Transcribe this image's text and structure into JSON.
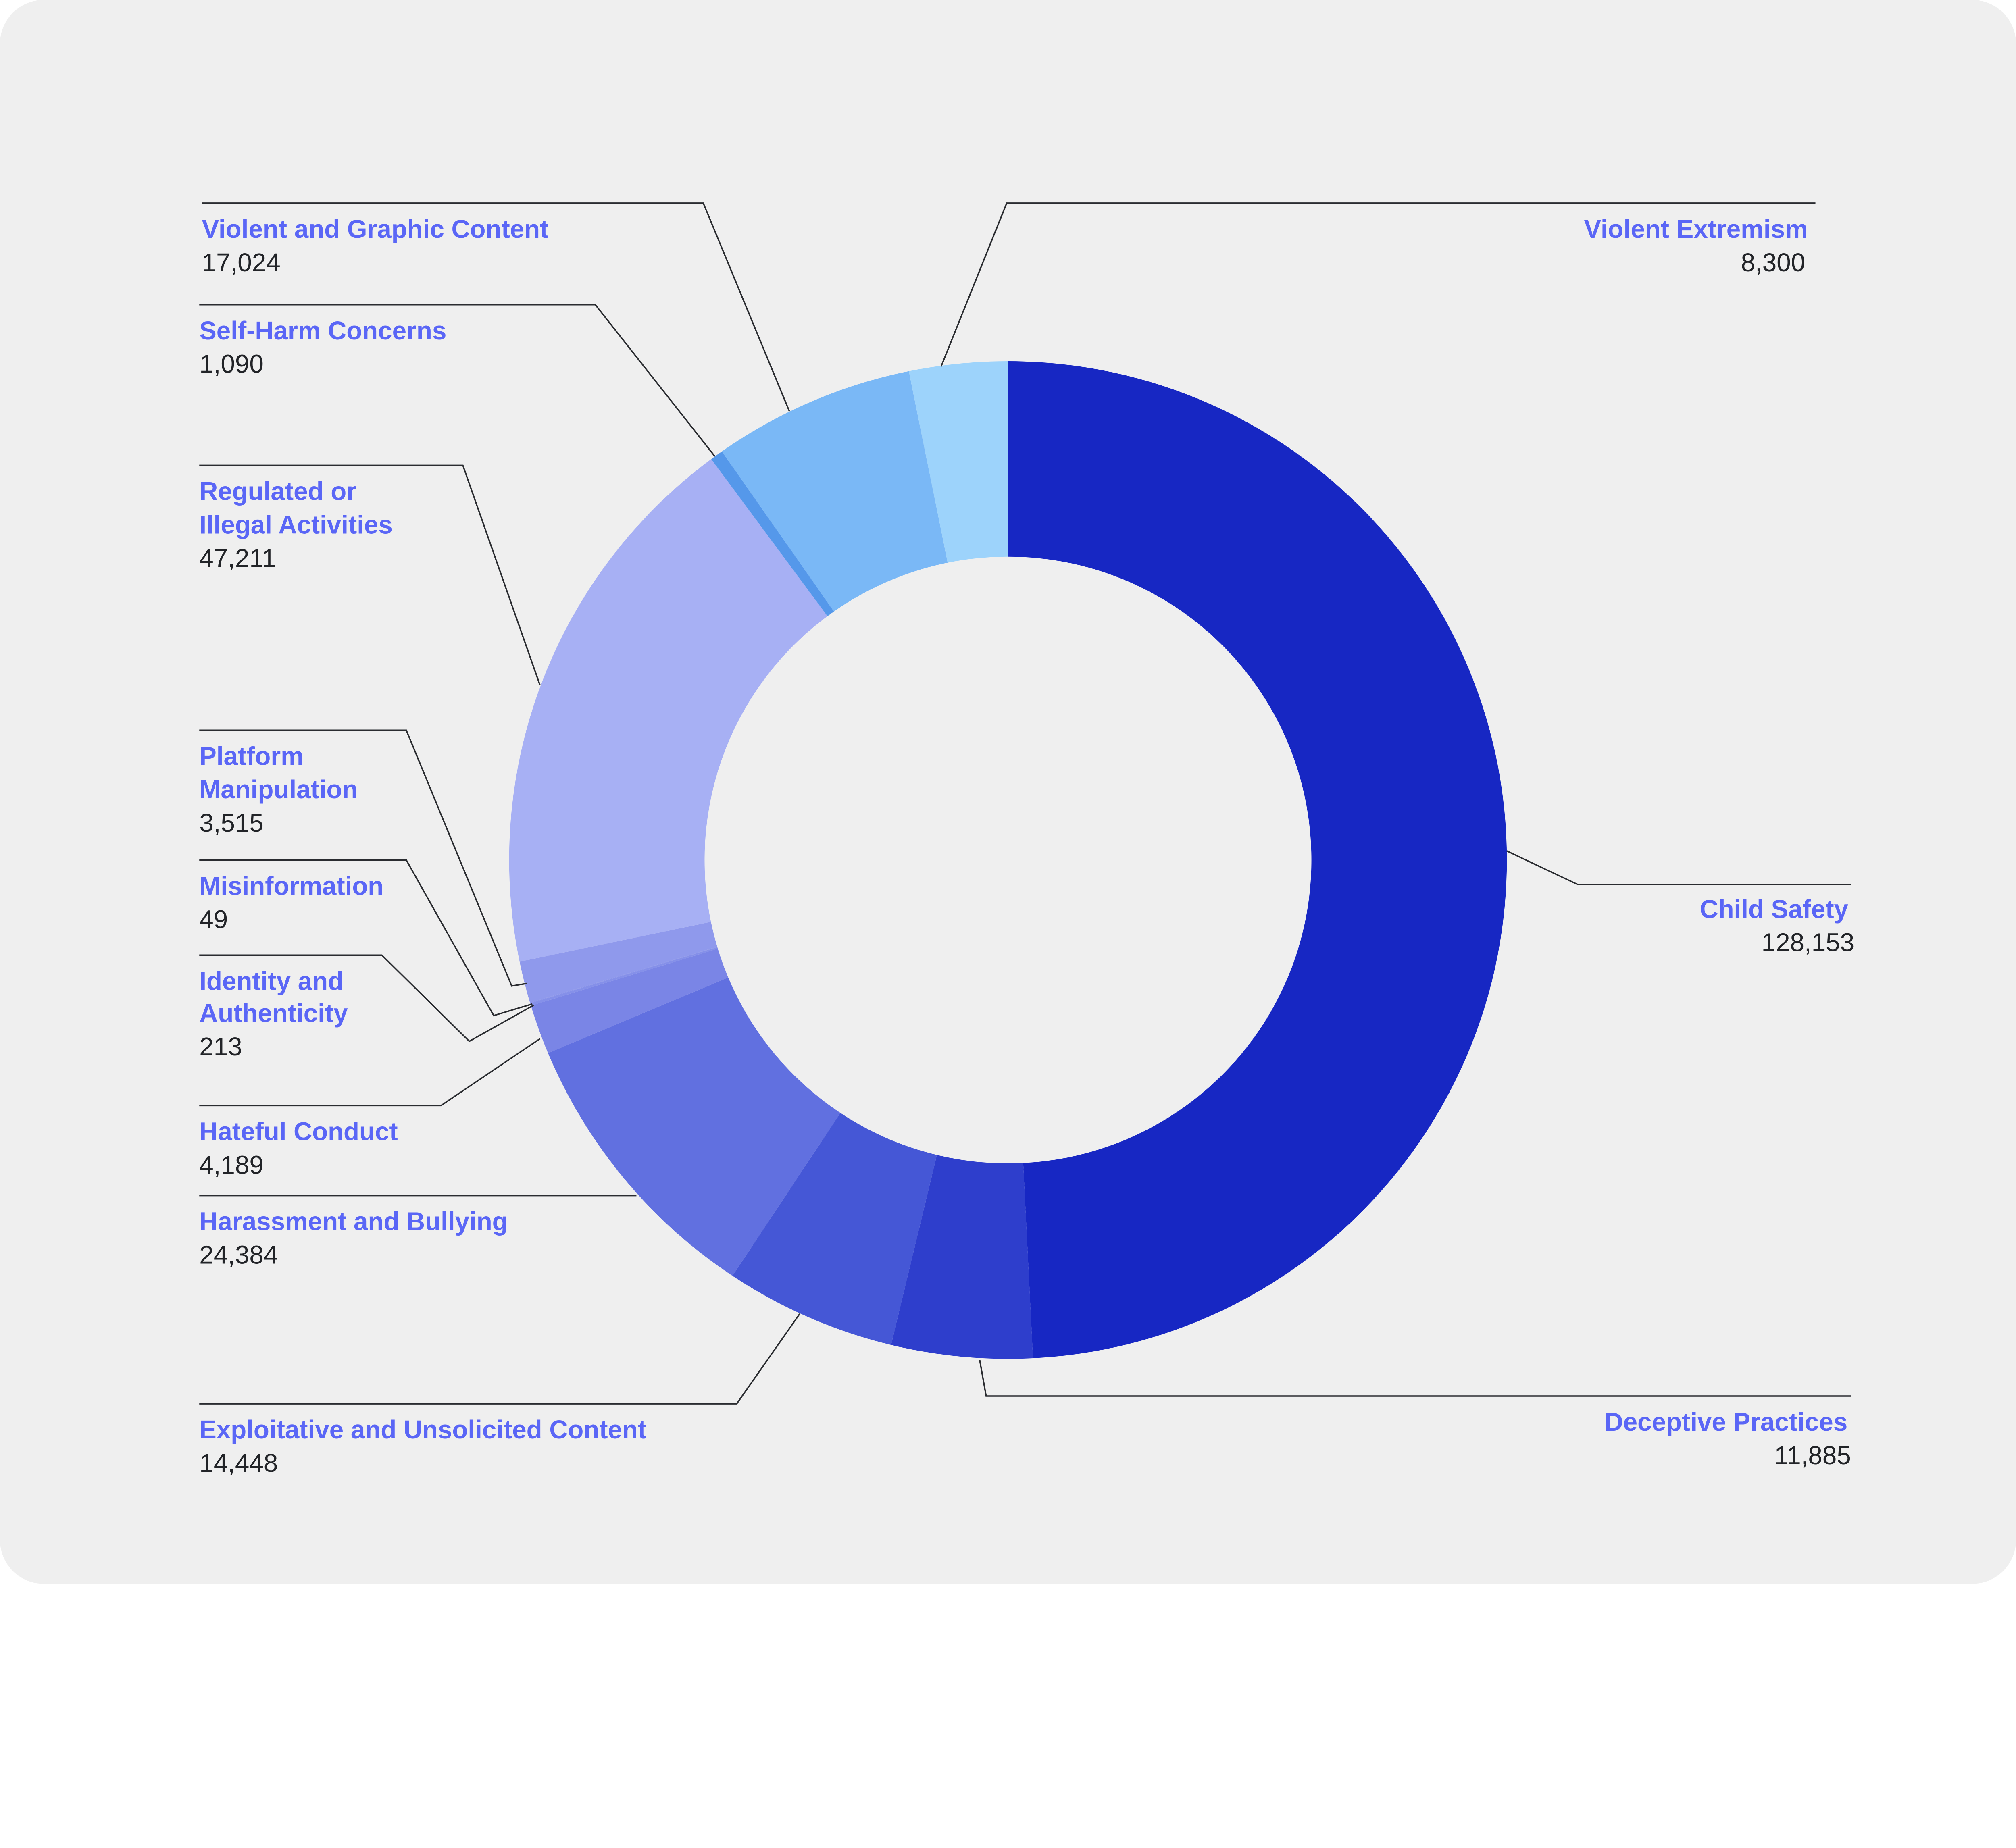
{
  "chart_data": {
    "type": "pie",
    "variant": "donut",
    "start": "top",
    "direction": "clockwise",
    "slices": [
      {
        "label": "Child Safety",
        "label_lines": [
          "Child Safety"
        ],
        "value": 128153,
        "value_text": "128,153",
        "color": "#1727c3"
      },
      {
        "label": "Deceptive Practices",
        "label_lines": [
          "Deceptive Practices"
        ],
        "value": 11885,
        "value_text": "11,885",
        "color": "#2e3ecc"
      },
      {
        "label": "Exploitative and Unsolicited Content",
        "label_lines": [
          "Exploitative and Unsolicited Content"
        ],
        "value": 14448,
        "value_text": "14,448",
        "color": "#4557d6"
      },
      {
        "label": "Harassment and Bullying",
        "label_lines": [
          "Harassment and Bullying"
        ],
        "value": 24384,
        "value_text": "24,384",
        "color": "#6170e0"
      },
      {
        "label": "Hateful Conduct",
        "label_lines": [
          "Hateful Conduct"
        ],
        "value": 4189,
        "value_text": "4,189",
        "color": "#7a85e6"
      },
      {
        "label": "Identity and Authenticity",
        "label_lines": [
          "Identity and",
          "Authenticity"
        ],
        "value": 213,
        "value_text": "213",
        "color": "#8590e9"
      },
      {
        "label": "Misinformation",
        "label_lines": [
          "Misinformation"
        ],
        "value": 49,
        "value_text": "49",
        "color": "#8a94ea"
      },
      {
        "label": "Platform Manipulation",
        "label_lines": [
          "Platform",
          "Manipulation"
        ],
        "value": 3515,
        "value_text": "3,515",
        "color": "#8f99ec"
      },
      {
        "label": "Regulated or Illegal Activities",
        "label_lines": [
          "Regulated or",
          "Illegal Activities"
        ],
        "value": 47211,
        "value_text": "47,211",
        "color": "#a7b0f4"
      },
      {
        "label": "Self-Harm Concerns",
        "label_lines": [
          "Self-Harm Concerns"
        ],
        "value": 1090,
        "value_text": "1,090",
        "color": "#5598ea"
      },
      {
        "label": "Violent and Graphic Content",
        "label_lines": [
          "Violent and Graphic Content"
        ],
        "value": 17024,
        "value_text": "17,024",
        "color": "#7ab8f6"
      },
      {
        "label": "Violent Extremism",
        "label_lines": [
          "Violent Extremism"
        ],
        "value": 8300,
        "value_text": "8,300",
        "color": "#9dd3fb"
      }
    ]
  }
}
